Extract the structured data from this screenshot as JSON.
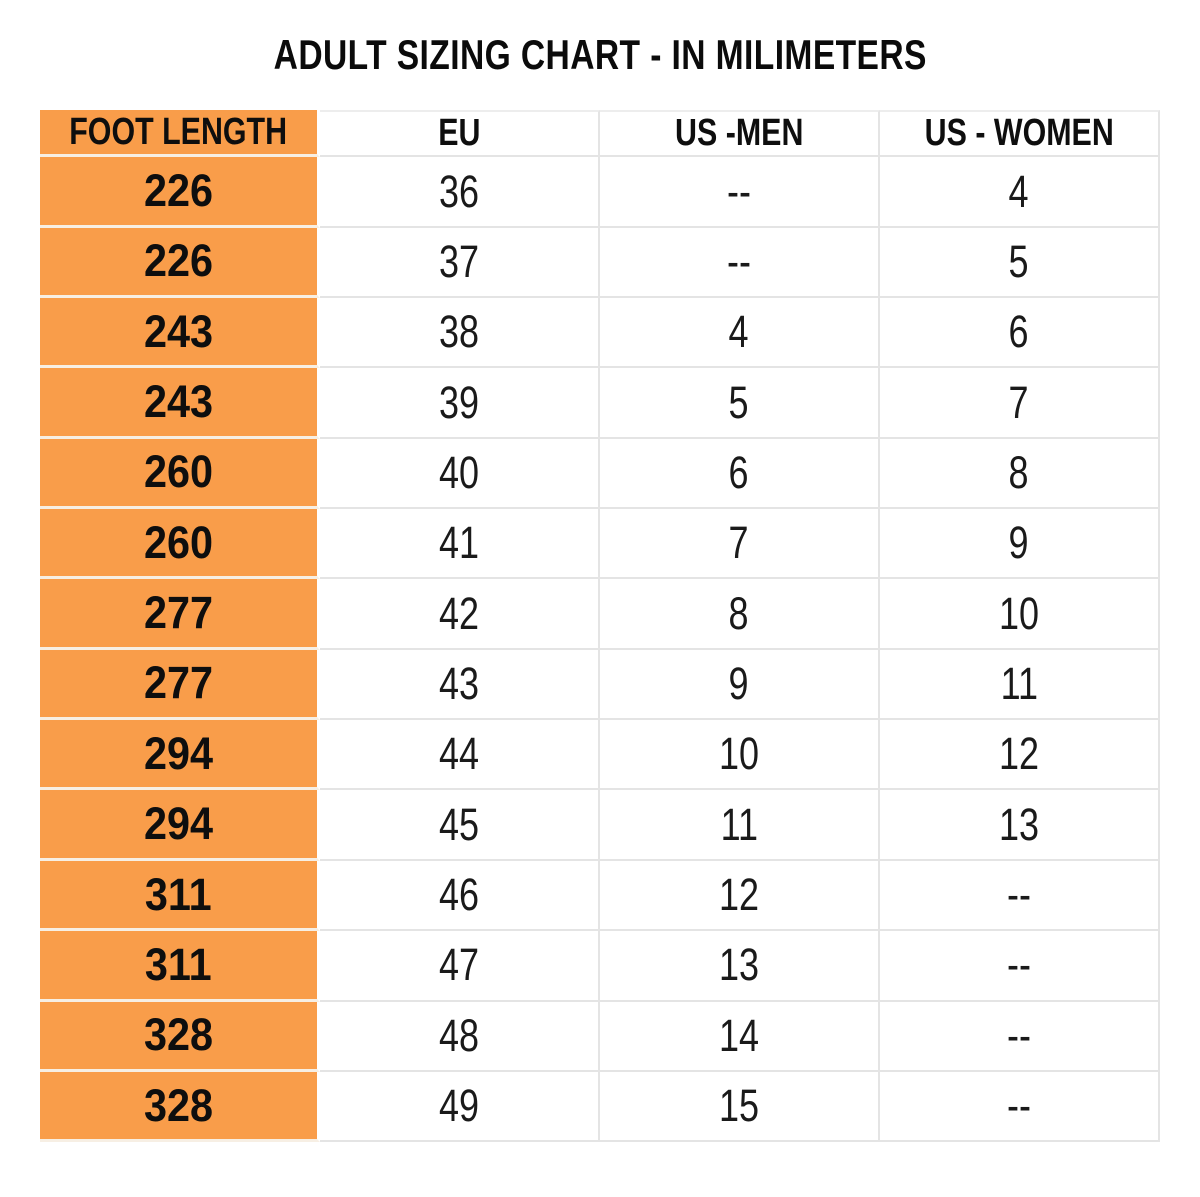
{
  "title": "ADULT SIZING CHART - IN MILIMETERS",
  "colors": {
    "orange": "#F99D4A",
    "grid": "#E4E4E4",
    "header_top_line": "#EDEDED",
    "orange_row_divider": "#F7EFE4",
    "orange_col_divider": "#FFFFFF",
    "text": "#151515",
    "background": "#FFFFFF"
  },
  "chart_data": {
    "type": "table",
    "title": "ADULT SIZING CHART - IN MILIMETERS",
    "columns": [
      "FOOT LENGTH",
      "EU",
      "US -MEN",
      "US - WOMEN"
    ],
    "highlighted_column": "FOOT LENGTH",
    "highlight_color": "#F99D4A",
    "rows": [
      [
        "226",
        "36",
        "--",
        "4"
      ],
      [
        "226",
        "37",
        "--",
        "5"
      ],
      [
        "243",
        "38",
        "4",
        "6"
      ],
      [
        "243",
        "39",
        "5",
        "7"
      ],
      [
        "260",
        "40",
        "6",
        "8"
      ],
      [
        "260",
        "41",
        "7",
        "9"
      ],
      [
        "277",
        "42",
        "8",
        "10"
      ],
      [
        "277",
        "43",
        "9",
        "11"
      ],
      [
        "294",
        "44",
        "10",
        "12"
      ],
      [
        "294",
        "45",
        "11",
        "13"
      ],
      [
        "311",
        "46",
        "12",
        "--"
      ],
      [
        "311",
        "47",
        "13",
        "--"
      ],
      [
        "328",
        "48",
        "14",
        "--"
      ],
      [
        "328",
        "49",
        "15",
        "--"
      ]
    ]
  }
}
